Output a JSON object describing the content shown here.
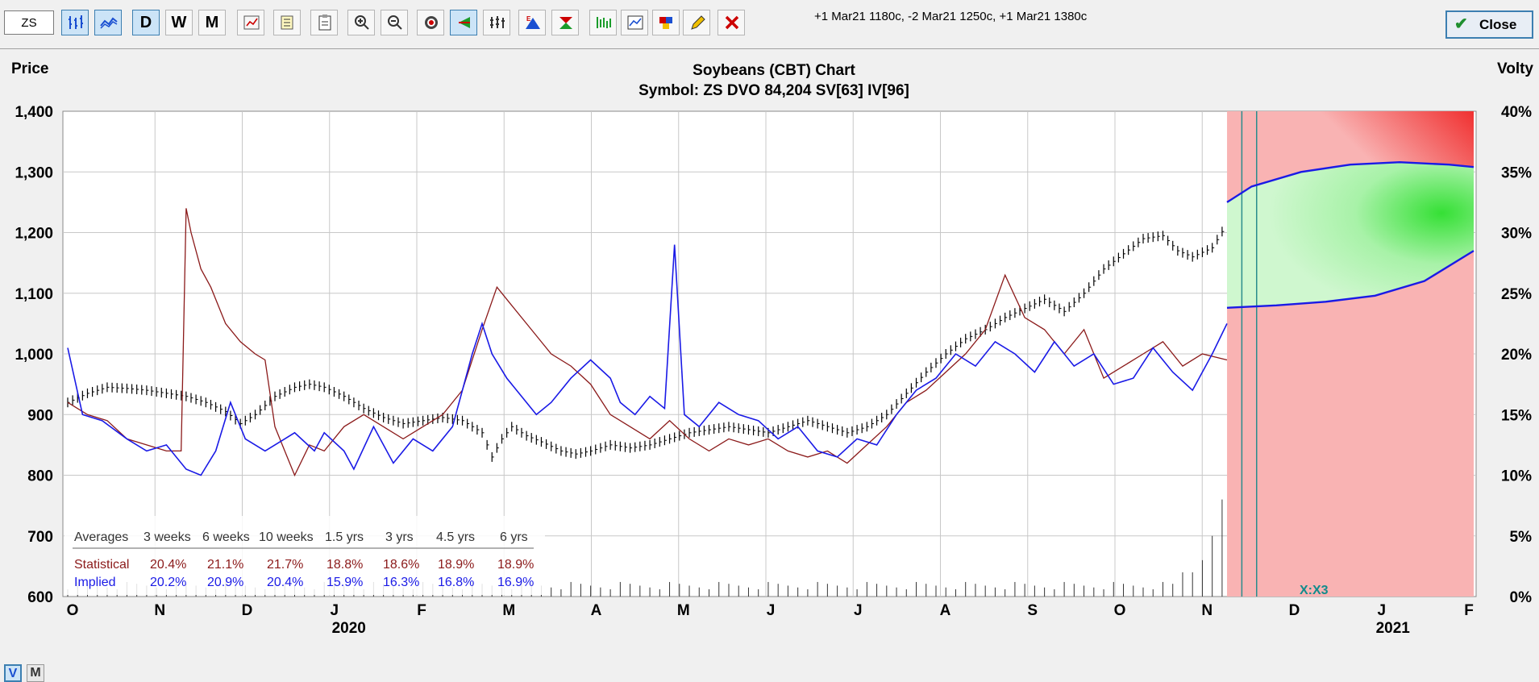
{
  "toolbar": {
    "symbol_value": "ZS",
    "period_buttons": [
      "D",
      "W",
      "M"
    ],
    "position_text": "+1 Mar21 1180c, -2 Mar21 1250c, +1 Mar21 1380c",
    "close_label": "Close",
    "icons": [
      "bar-chart-icon",
      "line-chart-icon",
      "candlestick-icon",
      "calculator-icon",
      "clipboard-icon",
      "form-icon",
      "zoom-in-icon",
      "zoom-out-icon",
      "target-icon",
      "arrow-icon",
      "bars-icon",
      "expiry-icon",
      "strategy-icon",
      "plot-icon",
      "analysis-icon",
      "palette-icon",
      "pencil-icon",
      "delete-icon"
    ],
    "accent": "#3c7fb1"
  },
  "chart": {
    "title": "Soybeans (CBT) Chart",
    "subtitle": "Symbol: ZS  DVO 84,204  SV[63]  IV[96]",
    "left_axis_title": "Price",
    "right_axis_title": "Volty",
    "expiry_label": "X:X3",
    "view_buttons": [
      "V",
      "M"
    ]
  },
  "averages": {
    "headers": [
      "Averages",
      "3 weeks",
      "6 weeks",
      "10 weeks",
      "1.5 yrs",
      "3 yrs",
      "4.5 yrs",
      "6 yrs"
    ],
    "rows": [
      {
        "label": "Statistical",
        "values": [
          "20.4%",
          "21.1%",
          "21.7%",
          "18.8%",
          "18.6%",
          "18.9%",
          "18.9%"
        ],
        "color": "#8b1a1a"
      },
      {
        "label": "Implied",
        "values": [
          "20.2%",
          "20.9%",
          "20.4%",
          "15.9%",
          "16.3%",
          "16.8%",
          "16.9%"
        ],
        "color": "#1a1ae6"
      }
    ]
  },
  "chart_data": {
    "type": "line",
    "title": "Soybeans (CBT) Chart",
    "y_left": {
      "label": "Price",
      "range": [
        600,
        1400
      ],
      "ticks": [
        "600",
        "700",
        "800",
        "900",
        "1,000",
        "1,100",
        "1,200",
        "1,300",
        "1,400"
      ]
    },
    "y_right": {
      "label": "Volty",
      "range": [
        0,
        40
      ],
      "ticks": [
        "0%",
        "5%",
        "10%",
        "15%",
        "20%",
        "25%",
        "30%",
        "35%",
        "40%"
      ]
    },
    "x_month_labels": [
      "O",
      "N",
      "D",
      "J",
      "F",
      "M",
      "A",
      "M",
      "J",
      "J",
      "A",
      "S",
      "O",
      "N",
      "D",
      "J",
      "F"
    ],
    "x_year_labels": [
      "2020",
      "2021"
    ],
    "grid": true,
    "series": [
      {
        "name": "Price",
        "color": "#000000",
        "points": [
          [
            0,
            920
          ],
          [
            4,
            935
          ],
          [
            8,
            945
          ],
          [
            12,
            943
          ],
          [
            16,
            940
          ],
          [
            20,
            935
          ],
          [
            24,
            930
          ],
          [
            28,
            920
          ],
          [
            32,
            905
          ],
          [
            35,
            885
          ],
          [
            38,
            900
          ],
          [
            42,
            930
          ],
          [
            46,
            945
          ],
          [
            49,
            950
          ],
          [
            52,
            945
          ],
          [
            56,
            930
          ],
          [
            60,
            910
          ],
          [
            64,
            895
          ],
          [
            68,
            885
          ],
          [
            72,
            890
          ],
          [
            76,
            895
          ],
          [
            80,
            890
          ],
          [
            84,
            870
          ],
          [
            86,
            830
          ],
          [
            88,
            860
          ],
          [
            90,
            880
          ],
          [
            93,
            865
          ],
          [
            96,
            855
          ],
          [
            100,
            840
          ],
          [
            103,
            835
          ],
          [
            106,
            840
          ],
          [
            110,
            850
          ],
          [
            114,
            845
          ],
          [
            118,
            850
          ],
          [
            122,
            860
          ],
          [
            126,
            870
          ],
          [
            130,
            875
          ],
          [
            134,
            880
          ],
          [
            138,
            875
          ],
          [
            142,
            870
          ],
          [
            146,
            880
          ],
          [
            150,
            890
          ],
          [
            154,
            880
          ],
          [
            158,
            870
          ],
          [
            162,
            880
          ],
          [
            166,
            900
          ],
          [
            170,
            935
          ],
          [
            174,
            970
          ],
          [
            178,
            1000
          ],
          [
            182,
            1025
          ],
          [
            186,
            1040
          ],
          [
            190,
            1060
          ],
          [
            194,
            1075
          ],
          [
            198,
            1090
          ],
          [
            202,
            1070
          ],
          [
            206,
            1100
          ],
          [
            210,
            1140
          ],
          [
            214,
            1165
          ],
          [
            218,
            1190
          ],
          [
            222,
            1195
          ],
          [
            225,
            1170
          ],
          [
            228,
            1160
          ],
          [
            232,
            1175
          ],
          [
            235,
            1215
          ]
        ]
      },
      {
        "name": "Statistical Volatility",
        "color": "#8b1a1a",
        "points": [
          [
            0,
            16
          ],
          [
            4,
            15
          ],
          [
            8,
            14.5
          ],
          [
            12,
            13
          ],
          [
            16,
            12.5
          ],
          [
            20,
            12
          ],
          [
            23,
            12
          ],
          [
            24,
            32
          ],
          [
            25,
            30
          ],
          [
            27,
            27
          ],
          [
            29,
            25.5
          ],
          [
            32,
            22.5
          ],
          [
            35,
            21
          ],
          [
            38,
            20
          ],
          [
            40,
            19.5
          ],
          [
            42,
            14
          ],
          [
            44,
            12
          ],
          [
            46,
            10
          ],
          [
            49,
            12.5
          ],
          [
            52,
            12
          ],
          [
            56,
            14
          ],
          [
            60,
            15
          ],
          [
            64,
            14
          ],
          [
            68,
            13
          ],
          [
            72,
            14
          ],
          [
            76,
            15
          ],
          [
            80,
            17
          ],
          [
            84,
            22
          ],
          [
            87,
            25.5
          ],
          [
            90,
            24
          ],
          [
            94,
            22
          ],
          [
            98,
            20
          ],
          [
            102,
            19
          ],
          [
            106,
            17.5
          ],
          [
            110,
            15
          ],
          [
            114,
            14
          ],
          [
            118,
            13
          ],
          [
            122,
            14.5
          ],
          [
            126,
            13
          ],
          [
            130,
            12
          ],
          [
            134,
            13
          ],
          [
            138,
            12.5
          ],
          [
            142,
            13
          ],
          [
            146,
            12
          ],
          [
            150,
            11.5
          ],
          [
            154,
            12
          ],
          [
            158,
            11
          ],
          [
            162,
            12.5
          ],
          [
            166,
            14
          ],
          [
            170,
            16
          ],
          [
            174,
            17
          ],
          [
            178,
            18.5
          ],
          [
            182,
            20
          ],
          [
            186,
            22
          ],
          [
            190,
            26.5
          ],
          [
            194,
            23
          ],
          [
            198,
            22
          ],
          [
            202,
            20
          ],
          [
            206,
            22
          ],
          [
            210,
            18
          ],
          [
            214,
            19
          ],
          [
            218,
            20
          ],
          [
            222,
            21
          ],
          [
            226,
            19
          ],
          [
            230,
            20
          ],
          [
            235,
            19.5
          ]
        ]
      },
      {
        "name": "Implied Volatility",
        "color": "#1a1ae6",
        "points": [
          [
            0,
            20.5
          ],
          [
            3,
            15
          ],
          [
            7,
            14.5
          ],
          [
            12,
            13
          ],
          [
            16,
            12
          ],
          [
            20,
            12.5
          ],
          [
            24,
            10.5
          ],
          [
            27,
            10
          ],
          [
            30,
            12
          ],
          [
            33,
            16
          ],
          [
            36,
            13
          ],
          [
            40,
            12
          ],
          [
            44,
            13
          ],
          [
            46,
            13.5
          ],
          [
            50,
            12
          ],
          [
            52,
            13.5
          ],
          [
            56,
            12
          ],
          [
            58,
            10.5
          ],
          [
            62,
            14
          ],
          [
            66,
            11
          ],
          [
            70,
            13
          ],
          [
            74,
            12
          ],
          [
            78,
            14
          ],
          [
            82,
            20
          ],
          [
            84,
            22.5
          ],
          [
            86,
            20
          ],
          [
            89,
            18
          ],
          [
            92,
            16.5
          ],
          [
            95,
            15
          ],
          [
            98,
            16
          ],
          [
            102,
            18
          ],
          [
            106,
            19.5
          ],
          [
            110,
            18
          ],
          [
            112,
            16
          ],
          [
            115,
            15
          ],
          [
            118,
            16.5
          ],
          [
            121,
            15.5
          ],
          [
            123,
            29
          ],
          [
            125,
            15
          ],
          [
            128,
            14
          ],
          [
            132,
            16
          ],
          [
            136,
            15
          ],
          [
            140,
            14.5
          ],
          [
            144,
            13
          ],
          [
            148,
            14
          ],
          [
            152,
            12
          ],
          [
            156,
            11.5
          ],
          [
            160,
            13
          ],
          [
            164,
            12.5
          ],
          [
            168,
            15
          ],
          [
            172,
            17
          ],
          [
            176,
            18
          ],
          [
            180,
            20
          ],
          [
            184,
            19
          ],
          [
            188,
            21
          ],
          [
            192,
            20
          ],
          [
            196,
            18.5
          ],
          [
            200,
            21
          ],
          [
            204,
            19
          ],
          [
            208,
            20
          ],
          [
            212,
            17.5
          ],
          [
            216,
            18
          ],
          [
            220,
            20.5
          ],
          [
            224,
            18.5
          ],
          [
            228,
            17
          ],
          [
            232,
            20
          ],
          [
            235,
            22.5
          ]
        ]
      },
      {
        "name": "Upper Band",
        "color": "#1a1ae6",
        "points": [
          [
            235,
            32.5
          ],
          [
            240,
            33.8
          ],
          [
            250,
            35
          ],
          [
            260,
            35.6
          ],
          [
            270,
            35.8
          ],
          [
            280,
            35.6
          ],
          [
            285,
            35.4
          ]
        ]
      },
      {
        "name": "Lower Band",
        "color": "#1a1ae6",
        "points": [
          [
            235,
            23.8
          ],
          [
            245,
            24
          ],
          [
            255,
            24.3
          ],
          [
            265,
            24.8
          ],
          [
            275,
            26
          ],
          [
            285,
            28.5
          ]
        ]
      }
    ],
    "volume": [
      [
        226,
        2
      ],
      [
        229,
        3
      ],
      [
        232,
        5
      ],
      [
        234,
        8
      ],
      [
        235,
        10
      ]
    ]
  }
}
